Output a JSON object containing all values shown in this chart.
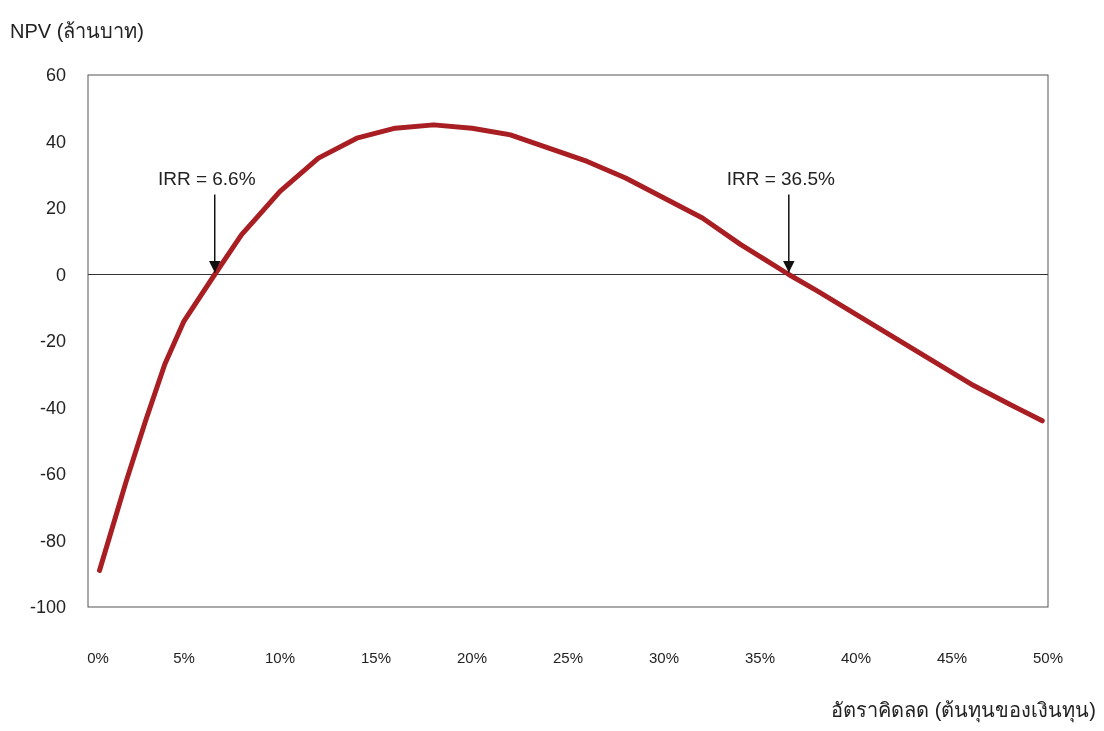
{
  "chart_data": {
    "type": "line",
    "xlabel": "อัตราคิดลด (ต้นทุนของเงินทุน)",
    "ylabel": "NPV (ล้านบาท)",
    "series": [
      {
        "color": "#a81e22",
        "x": [
          0.6,
          2,
          3,
          4,
          5,
          6.6,
          8,
          10,
          12,
          14,
          16,
          18,
          20,
          22,
          24,
          26,
          28,
          30,
          32,
          34,
          36.5,
          38,
          40,
          42,
          44,
          46,
          48,
          49.7
        ],
        "values": [
          -89,
          -62,
          -44,
          -27,
          -14,
          0,
          12,
          25,
          35,
          41,
          44,
          45,
          44,
          42,
          38,
          34,
          29,
          23,
          17,
          9,
          0,
          -5,
          -12,
          -19,
          -26,
          -33,
          -39,
          -44
        ]
      }
    ],
    "xlim": [
      0,
      50
    ],
    "ylim": [
      -100,
      60
    ],
    "xticks": [
      {
        "value": 0,
        "label": "0%"
      },
      {
        "value": 5,
        "label": "5%"
      },
      {
        "value": 10,
        "label": "10%"
      },
      {
        "value": 15,
        "label": "15%"
      },
      {
        "value": 20,
        "label": "20%"
      },
      {
        "value": 25,
        "label": "25%"
      },
      {
        "value": 30,
        "label": "30%"
      },
      {
        "value": 35,
        "label": "35%"
      },
      {
        "value": 40,
        "label": "40%"
      },
      {
        "value": 45,
        "label": "45%"
      },
      {
        "value": 50,
        "label": "50%"
      }
    ],
    "yticks": [
      -100,
      -80,
      -60,
      -40,
      -20,
      0,
      20,
      40,
      60
    ],
    "ref_lines": [
      {
        "axis": "y",
        "value": 0,
        "color": "#333333"
      }
    ],
    "annotations": [
      {
        "text": "IRR = 6.6%",
        "x": 6.6,
        "y": 0
      },
      {
        "text": "IRR = 36.5%",
        "x": 36.5,
        "y": 0
      }
    ],
    "grid": false,
    "marker": "none",
    "line_style": "solid"
  }
}
